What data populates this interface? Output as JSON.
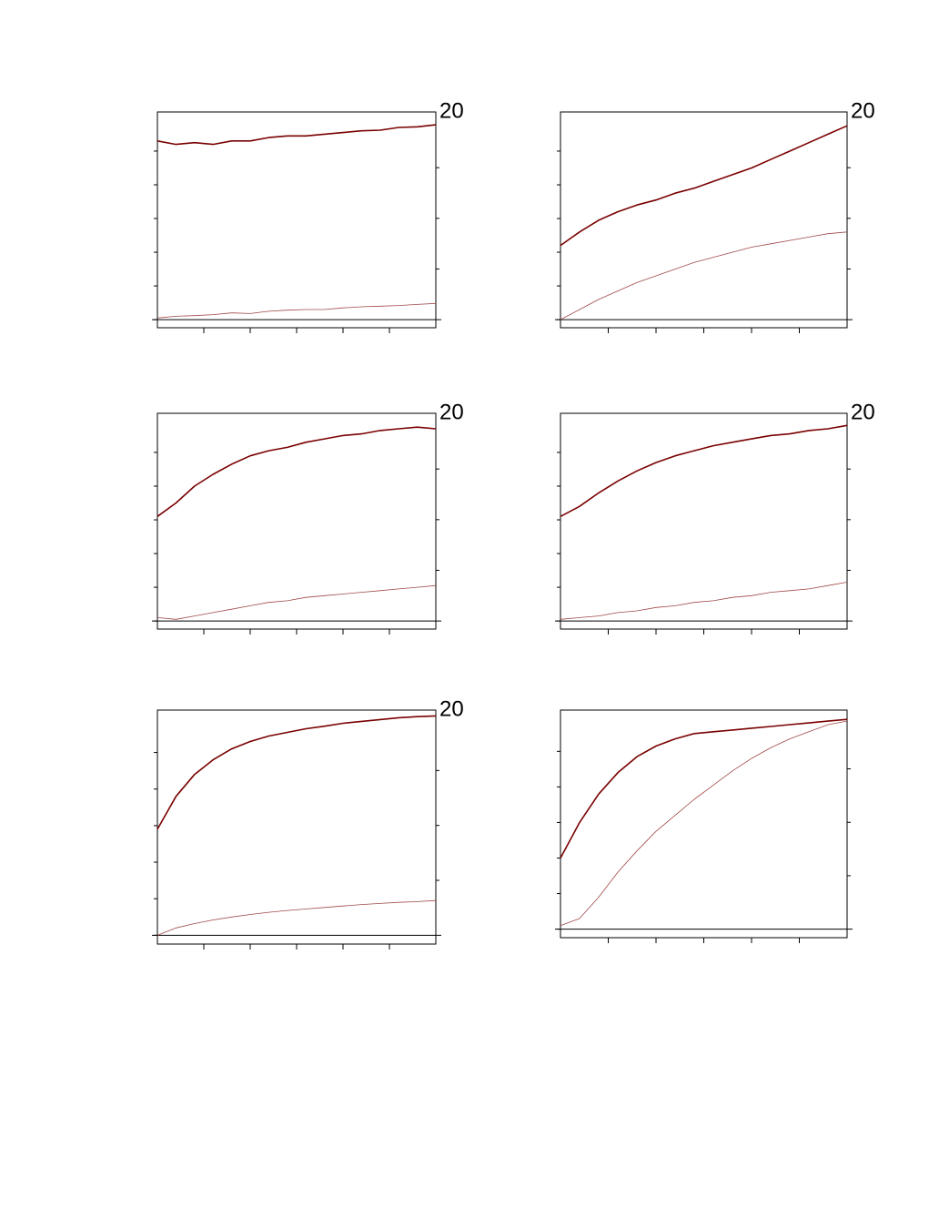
{
  "chart_data": [
    {
      "type": "line",
      "x": [
        0,
        20,
        40,
        60,
        80,
        100,
        120,
        140,
        160,
        180,
        200,
        220,
        240,
        260,
        280,
        300
      ],
      "xlim": [
        0,
        300
      ],
      "xticks": [
        50,
        100,
        150,
        200,
        250
      ],
      "ylim": [
        -0.24,
        6.16
      ],
      "yticks": [
        0,
        1,
        2,
        3,
        4,
        5
      ],
      "y2lim": [
        -0.8,
        20.5
      ],
      "y2ticks": [
        5,
        10,
        15
      ],
      "tick_labels": false,
      "zero_line": true,
      "annotation": "20",
      "series": [
        {
          "color": "#7a0000",
          "values": [
            5.3,
            5.2,
            5.25,
            5.2,
            5.3,
            5.3,
            5.4,
            5.45,
            5.45,
            5.5,
            5.55,
            5.6,
            5.62,
            5.7,
            5.72,
            5.78
          ]
        },
        {
          "color": "#a04848",
          "values": [
            0.05,
            0.1,
            0.12,
            0.15,
            0.2,
            0.18,
            0.25,
            0.28,
            0.3,
            0.3,
            0.35,
            0.38,
            0.4,
            0.42,
            0.45,
            0.48
          ]
        }
      ]
    },
    {
      "type": "line",
      "x": [
        0,
        20,
        40,
        60,
        80,
        100,
        120,
        140,
        160,
        180,
        200,
        220,
        240,
        260,
        280,
        300
      ],
      "xlim": [
        0,
        300
      ],
      "xticks": [
        50,
        100,
        150,
        200,
        250
      ],
      "ylim": [
        -0.24,
        6.16
      ],
      "yticks": [
        0,
        1,
        2,
        3,
        4,
        5
      ],
      "y2lim": [
        -0.8,
        20.5
      ],
      "y2ticks": [
        5,
        10,
        15
      ],
      "tick_labels": false,
      "zero_line": true,
      "annotation": "20",
      "series": [
        {
          "color": "#7a0000",
          "values": [
            2.2,
            2.6,
            2.95,
            3.2,
            3.4,
            3.55,
            3.75,
            3.9,
            4.1,
            4.3,
            4.5,
            4.75,
            5.0,
            5.25,
            5.5,
            5.75
          ]
        },
        {
          "color": "#a04848",
          "values": [
            0,
            0.3,
            0.6,
            0.85,
            1.1,
            1.3,
            1.5,
            1.7,
            1.85,
            2.0,
            2.15,
            2.25,
            2.35,
            2.45,
            2.55,
            2.6
          ]
        }
      ]
    },
    {
      "type": "line",
      "x": [
        0,
        20,
        40,
        60,
        80,
        100,
        120,
        140,
        160,
        180,
        200,
        220,
        240,
        260,
        280,
        300
      ],
      "xlim": [
        0,
        300
      ],
      "xticks": [
        50,
        100,
        150,
        200,
        250
      ],
      "ylim": [
        -0.24,
        6.16
      ],
      "yticks": [
        0,
        1,
        2,
        3,
        4,
        5
      ],
      "y2lim": [
        -0.8,
        20.5
      ],
      "y2ticks": [
        5,
        10,
        15
      ],
      "tick_labels": false,
      "zero_line": true,
      "annotation": "20",
      "series": [
        {
          "color": "#7a0000",
          "values": [
            3.1,
            3.5,
            4.0,
            4.35,
            4.65,
            4.9,
            5.05,
            5.15,
            5.3,
            5.4,
            5.5,
            5.55,
            5.65,
            5.7,
            5.75,
            5.7
          ]
        },
        {
          "color": "#a04848",
          "values": [
            0.1,
            0.05,
            0.15,
            0.25,
            0.35,
            0.45,
            0.55,
            0.6,
            0.7,
            0.75,
            0.8,
            0.85,
            0.9,
            0.95,
            1.0,
            1.05
          ]
        }
      ]
    },
    {
      "type": "line",
      "x": [
        0,
        20,
        40,
        60,
        80,
        100,
        120,
        140,
        160,
        180,
        200,
        220,
        240,
        260,
        280,
        300
      ],
      "xlim": [
        0,
        300
      ],
      "xticks": [
        50,
        100,
        150,
        200,
        250
      ],
      "ylim": [
        -0.24,
        6.16
      ],
      "yticks": [
        0,
        1,
        2,
        3,
        4,
        5
      ],
      "y2lim": [
        -0.8,
        20.5
      ],
      "y2ticks": [
        5,
        10,
        15
      ],
      "tick_labels": false,
      "zero_line": true,
      "annotation": "20",
      "series": [
        {
          "color": "#7a0000",
          "values": [
            3.1,
            3.4,
            3.8,
            4.15,
            4.45,
            4.7,
            4.9,
            5.05,
            5.2,
            5.3,
            5.4,
            5.5,
            5.55,
            5.65,
            5.7,
            5.8
          ]
        },
        {
          "color": "#a04848",
          "values": [
            0.05,
            0.1,
            0.15,
            0.25,
            0.3,
            0.4,
            0.45,
            0.55,
            0.6,
            0.7,
            0.75,
            0.85,
            0.9,
            0.95,
            1.05,
            1.15
          ]
        }
      ]
    },
    {
      "type": "line",
      "x": [
        0,
        20,
        40,
        60,
        80,
        100,
        120,
        140,
        160,
        180,
        200,
        220,
        240,
        260,
        280,
        300
      ],
      "xlim": [
        0,
        300
      ],
      "xticks": [
        50,
        100,
        150,
        200,
        250
      ],
      "ylim": [
        -0.24,
        6.16
      ],
      "yticks": [
        0,
        1,
        2,
        3,
        4,
        5
      ],
      "y2lim": [
        -0.8,
        20.5
      ],
      "y2ticks": [
        5,
        10,
        15
      ],
      "tick_labels": false,
      "zero_line": true,
      "annotation": "20",
      "series": [
        {
          "color": "#7a0000",
          "values": [
            2.9,
            3.8,
            4.4,
            4.8,
            5.1,
            5.3,
            5.45,
            5.55,
            5.65,
            5.72,
            5.8,
            5.85,
            5.9,
            5.95,
            5.98,
            6.0
          ]
        },
        {
          "color": "#a04848",
          "values": [
            0,
            0.2,
            0.32,
            0.42,
            0.5,
            0.57,
            0.63,
            0.68,
            0.72,
            0.76,
            0.8,
            0.84,
            0.87,
            0.9,
            0.92,
            0.95
          ]
        }
      ]
    },
    {
      "type": "line",
      "x": [
        0,
        20,
        40,
        60,
        80,
        100,
        120,
        140,
        160,
        180,
        200,
        220,
        240,
        260,
        280,
        300
      ],
      "xlim": [
        0,
        300
      ],
      "xticks": [
        50,
        100,
        150,
        200,
        250
      ],
      "ylim": [
        -0.24,
        6.16
      ],
      "yticks": [
        0,
        1,
        2,
        3,
        4,
        5
      ],
      "y2lim": [
        -0.8,
        20.5
      ],
      "y2ticks": [
        5,
        10,
        15
      ],
      "tick_labels": false,
      "zero_line": true,
      "series": [
        {
          "color": "#7a0000",
          "values": [
            2.0,
            3.0,
            3.8,
            4.4,
            4.85,
            5.15,
            5.35,
            5.5,
            5.55,
            5.6,
            5.65,
            5.7,
            5.75,
            5.8,
            5.85,
            5.9
          ]
        },
        {
          "color": "#a04848",
          "values": [
            0.1,
            0.3,
            0.9,
            1.6,
            2.2,
            2.75,
            3.2,
            3.65,
            4.05,
            4.45,
            4.8,
            5.1,
            5.35,
            5.55,
            5.75,
            5.85
          ]
        }
      ]
    }
  ]
}
